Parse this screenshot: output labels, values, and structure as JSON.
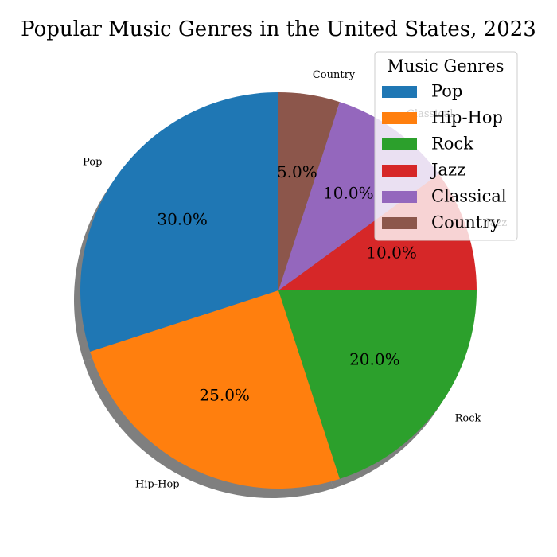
{
  "chart_data": {
    "type": "pie",
    "title": "Popular Music Genres in the United States, 2023",
    "categories": [
      "Pop",
      "Hip-Hop",
      "Rock",
      "Jazz",
      "Classical",
      "Country"
    ],
    "values": [
      30,
      25,
      20,
      10,
      10,
      5
    ],
    "percent_labels": [
      "30.0%",
      "25.0%",
      "20.0%",
      "10.0%",
      "10.0%",
      "5.0%"
    ],
    "colors": [
      "#1f77b4",
      "#ff7f0e",
      "#2ca02c",
      "#d62728",
      "#9467bd",
      "#8c564b"
    ],
    "start_angle_deg": 90,
    "direction": "counterclockwise",
    "shadow": true,
    "legend": {
      "title": "Music Genres",
      "placement": "top-right",
      "entries": [
        "Pop",
        "Hip-Hop",
        "Rock",
        "Jazz",
        "Classical",
        "Country"
      ]
    }
  }
}
